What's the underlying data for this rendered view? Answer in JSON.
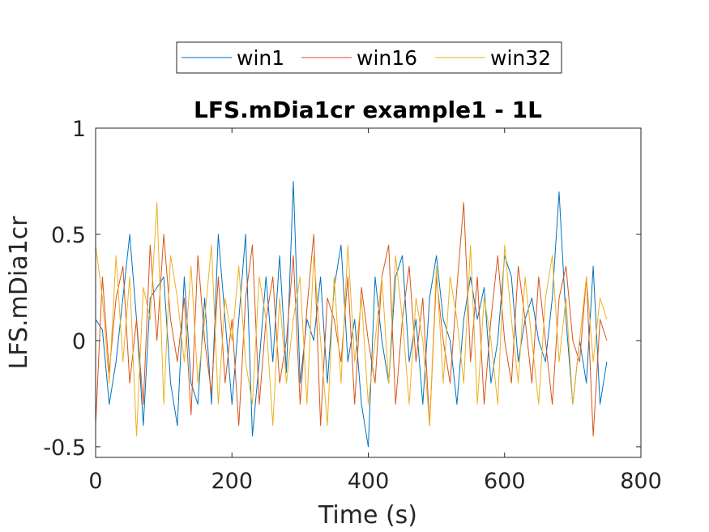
{
  "chart_data": {
    "type": "line",
    "title": "LFS.mDia1cr example1 - 1L",
    "xlabel": "Time (s)",
    "ylabel": "LFS.mDia1cr",
    "xlim": [
      0,
      800
    ],
    "ylim": [
      -0.55,
      1
    ],
    "xticks": [
      0,
      200,
      400,
      600,
      800
    ],
    "xtick_labels": [
      "0",
      "200",
      "400",
      "600",
      "800"
    ],
    "yticks": [
      -0.5,
      0,
      0.5,
      1
    ],
    "ytick_labels": [
      "-0.5",
      "0",
      "0.5",
      "1"
    ],
    "grid": false,
    "legend_position": "top, outside plot, horizontal",
    "series": [
      {
        "name": "win1",
        "color": "#0072BD",
        "x": [
          0,
          10,
          20,
          30,
          40,
          50,
          60,
          70,
          80,
          90,
          100,
          110,
          120,
          130,
          140,
          150,
          160,
          170,
          180,
          190,
          200,
          210,
          220,
          230,
          240,
          250,
          260,
          270,
          280,
          290,
          300,
          310,
          320,
          330,
          340,
          350,
          360,
          370,
          380,
          390,
          400,
          410,
          420,
          430,
          440,
          450,
          460,
          470,
          480,
          490,
          500,
          510,
          520,
          530,
          540,
          550,
          560,
          570,
          580,
          590,
          600,
          610,
          620,
          630,
          640,
          650,
          660,
          670,
          680,
          690,
          700,
          710,
          720,
          730,
          740,
          750
        ],
        "values": [
          0.1,
          0.05,
          -0.3,
          -0.1,
          0.2,
          0.5,
          0.1,
          -0.4,
          0.2,
          0.25,
          0.3,
          -0.2,
          -0.4,
          0.3,
          -0.2,
          -0.3,
          0.2,
          -0.3,
          0.5,
          0.1,
          -0.3,
          0.1,
          0.5,
          -0.45,
          -0.1,
          0.3,
          -0.1,
          0.4,
          -0.15,
          0.75,
          -0.2,
          0.1,
          0.0,
          0.3,
          -0.2,
          0.25,
          0.45,
          -0.1,
          0.1,
          -0.3,
          -0.5,
          0.3,
          0.0,
          -0.2,
          0.3,
          0.4,
          -0.1,
          0.1,
          -0.3,
          0.2,
          0.4,
          0.1,
          0.0,
          -0.3,
          0.1,
          0.3,
          0.1,
          0.25,
          -0.2,
          0.0,
          0.4,
          0.3,
          -0.1,
          0.1,
          0.2,
          0.0,
          -0.1,
          0.2,
          0.7,
          0.1,
          -0.3,
          0.0,
          -0.2,
          0.35,
          -0.3,
          -0.1
        ]
      },
      {
        "name": "win16",
        "color": "#D95319",
        "x": [
          0,
          10,
          20,
          30,
          40,
          50,
          60,
          70,
          80,
          90,
          100,
          110,
          120,
          130,
          140,
          150,
          160,
          170,
          180,
          190,
          200,
          210,
          220,
          230,
          240,
          250,
          260,
          270,
          280,
          290,
          300,
          310,
          320,
          330,
          340,
          350,
          360,
          370,
          380,
          390,
          400,
          410,
          420,
          430,
          440,
          450,
          460,
          470,
          480,
          490,
          500,
          510,
          520,
          530,
          540,
          550,
          560,
          570,
          580,
          590,
          600,
          610,
          620,
          630,
          640,
          650,
          660,
          670,
          680,
          690,
          700,
          710,
          720,
          730,
          740,
          750
        ],
        "values": [
          -0.4,
          0.3,
          -0.15,
          0.2,
          0.35,
          -0.2,
          0.1,
          -0.3,
          0.45,
          0.0,
          0.5,
          0.1,
          -0.1,
          0.2,
          -0.35,
          0.4,
          0.0,
          -0.25,
          0.3,
          -0.2,
          0.1,
          -0.4,
          0.2,
          0.45,
          -0.3,
          0.1,
          0.3,
          -0.2,
          0.0,
          0.4,
          -0.3,
          0.15,
          0.5,
          -0.4,
          0.2,
          0.1,
          -0.1,
          0.3,
          -0.3,
          0.25,
          0.0,
          -0.2,
          0.3,
          0.45,
          -0.3,
          0.1,
          0.35,
          -0.1,
          0.2,
          -0.4,
          0.3,
          0.0,
          -0.2,
          0.25,
          0.65,
          -0.1,
          0.3,
          -0.3,
          0.1,
          0.4,
          0.0,
          -0.2,
          0.35,
          0.1,
          -0.2,
          0.3,
          0.0,
          -0.3,
          0.2,
          0.35,
          0.0,
          -0.1,
          0.3,
          -0.45,
          0.1,
          0.0
        ]
      },
      {
        "name": "win32",
        "color": "#EDB120",
        "x": [
          0,
          10,
          20,
          30,
          40,
          50,
          60,
          70,
          80,
          90,
          100,
          110,
          120,
          130,
          140,
          150,
          160,
          170,
          180,
          190,
          200,
          210,
          220,
          230,
          240,
          250,
          260,
          270,
          280,
          290,
          300,
          310,
          320,
          330,
          340,
          350,
          360,
          370,
          380,
          390,
          400,
          410,
          420,
          430,
          440,
          450,
          460,
          470,
          480,
          490,
          500,
          510,
          520,
          530,
          540,
          550,
          560,
          570,
          580,
          590,
          600,
          610,
          620,
          630,
          640,
          650,
          660,
          670,
          680,
          690,
          700,
          710,
          720,
          730,
          740,
          750
        ],
        "values": [
          0.45,
          0.2,
          -0.2,
          0.4,
          -0.1,
          0.3,
          -0.45,
          0.25,
          0.1,
          0.65,
          -0.3,
          0.4,
          0.2,
          -0.1,
          0.35,
          -0.2,
          0.1,
          0.45,
          -0.3,
          0.2,
          0.0,
          0.35,
          -0.1,
          -0.3,
          0.3,
          0.1,
          -0.4,
          0.2,
          -0.2,
          0.1,
          0.3,
          -0.3,
          0.4,
          0.0,
          -0.4,
          0.3,
          -0.2,
          0.45,
          -0.1,
          0.2,
          -0.3,
          0.0,
          0.3,
          -0.2,
          0.4,
          0.1,
          -0.3,
          0.2,
          0.0,
          -0.4,
          0.35,
          -0.2,
          0.3,
          0.1,
          -0.2,
          0.45,
          -0.3,
          0.2,
          0.0,
          -0.3,
          0.45,
          0.1,
          -0.2,
          0.3,
          0.0,
          -0.3,
          0.2,
          0.4,
          -0.1,
          0.2,
          -0.3,
          0.0,
          0.3,
          -0.1,
          0.2,
          0.1
        ]
      }
    ]
  }
}
